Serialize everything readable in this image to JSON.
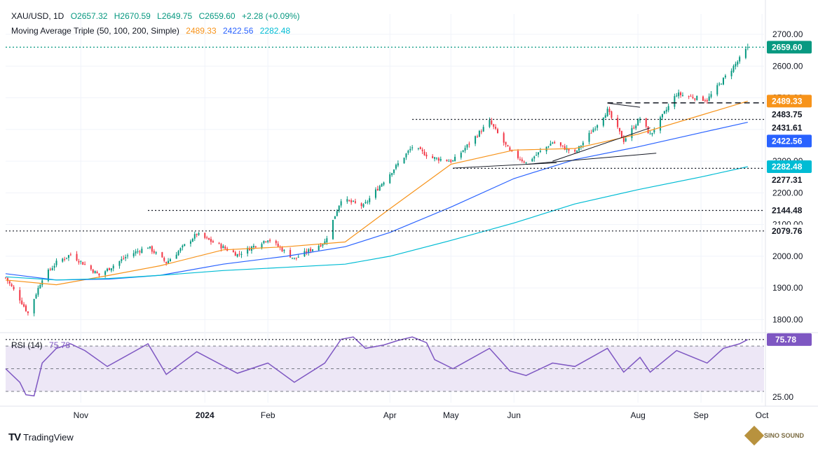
{
  "header": {
    "symbol": "XAU/USD, 1D",
    "open": "O2657.32",
    "high": "H2670.59",
    "low": "L2649.75",
    "close": "C2659.60",
    "change": "+2.28 (+0.09%)",
    "ma_label": "Moving Average Triple (50, 100, 200, Simple)",
    "ma50_value": "2489.33",
    "ma100_value": "2422.56",
    "ma200_value": "2282.48"
  },
  "rsi_header": {
    "label": "RSI (14)",
    "value": "75.78"
  },
  "footer": {
    "brand": "TradingView",
    "watermark": "SINO SOUND"
  },
  "colors": {
    "up": "#089981",
    "down": "#f23645",
    "ma50": "#f7931a",
    "ma100": "#2962ff",
    "ma200": "#00bcd4",
    "rsi": "#7e57c2",
    "rsi_band": "#ede7f6"
  },
  "chart_data": {
    "type": "candlestick",
    "symbol": "XAU/USD",
    "timeframe": "1D",
    "ylim": [
      1770,
      2720
    ],
    "y_ticks": [
      1800,
      1900,
      2000,
      2100,
      2200,
      2300,
      2400,
      2500,
      2600,
      2700
    ],
    "x_ticks": [
      {
        "label": "Nov",
        "date": "2023-11-01"
      },
      {
        "label": "2024",
        "date": "2024-01-01"
      },
      {
        "label": "Feb",
        "date": "2024-02-01"
      },
      {
        "label": "Apr",
        "date": "2024-04-01"
      },
      {
        "label": "May",
        "date": "2024-05-01"
      },
      {
        "label": "Jun",
        "date": "2024-06-01"
      },
      {
        "label": "Aug",
        "date": "2024-08-01"
      },
      {
        "label": "Sep",
        "date": "2024-09-01"
      },
      {
        "label": "Oct",
        "date": "2024-10-01"
      }
    ],
    "x_range": [
      "2023-09-25",
      "2024-10-02"
    ],
    "last_candle": {
      "open": 2657.32,
      "high": 2670.59,
      "low": 2649.75,
      "close": 2659.6
    },
    "price_anchors": [
      {
        "date": "2023-09-25",
        "close": 1932
      },
      {
        "date": "2023-10-02",
        "close": 1865
      },
      {
        "date": "2023-10-06",
        "close": 1820
      },
      {
        "date": "2023-10-13",
        "close": 1930
      },
      {
        "date": "2023-10-20",
        "close": 1980
      },
      {
        "date": "2023-10-27",
        "close": 2006
      },
      {
        "date": "2023-11-10",
        "close": 1940
      },
      {
        "date": "2023-11-24",
        "close": 2002
      },
      {
        "date": "2023-12-04",
        "close": 2030
      },
      {
        "date": "2023-12-13",
        "close": 1980
      },
      {
        "date": "2023-12-28",
        "close": 2070
      },
      {
        "date": "2024-01-17",
        "close": 2005
      },
      {
        "date": "2024-02-01",
        "close": 2055
      },
      {
        "date": "2024-02-14",
        "close": 1992
      },
      {
        "date": "2024-02-29",
        "close": 2045
      },
      {
        "date": "2024-03-08",
        "close": 2180
      },
      {
        "date": "2024-03-19",
        "close": 2158
      },
      {
        "date": "2024-03-28",
        "close": 2230
      },
      {
        "date": "2024-04-12",
        "close": 2345
      },
      {
        "date": "2024-04-22",
        "close": 2310
      },
      {
        "date": "2024-05-02",
        "close": 2300
      },
      {
        "date": "2024-05-20",
        "close": 2425
      },
      {
        "date": "2024-05-30",
        "close": 2330
      },
      {
        "date": "2024-06-07",
        "close": 2295
      },
      {
        "date": "2024-06-20",
        "close": 2360
      },
      {
        "date": "2024-07-01",
        "close": 2325
      },
      {
        "date": "2024-07-17",
        "close": 2460
      },
      {
        "date": "2024-07-25",
        "close": 2365
      },
      {
        "date": "2024-08-02",
        "close": 2435
      },
      {
        "date": "2024-08-07",
        "close": 2382
      },
      {
        "date": "2024-08-20",
        "close": 2512
      },
      {
        "date": "2024-09-04",
        "close": 2493
      },
      {
        "date": "2024-09-12",
        "close": 2558
      },
      {
        "date": "2024-09-20",
        "close": 2622
      },
      {
        "date": "2024-09-24",
        "close": 2659.6
      }
    ],
    "moving_averages": [
      {
        "name": "MA 50",
        "value": 2489.33,
        "color": "#f7931a",
        "points": [
          [
            "2023-09-25",
            1925
          ],
          [
            "2023-10-20",
            1910
          ],
          [
            "2023-11-15",
            1940
          ],
          [
            "2023-12-10",
            1970
          ],
          [
            "2024-01-10",
            2020
          ],
          [
            "2024-02-10",
            2030
          ],
          [
            "2024-03-10",
            2045
          ],
          [
            "2024-04-01",
            2150
          ],
          [
            "2024-05-01",
            2290
          ],
          [
            "2024-06-01",
            2335
          ],
          [
            "2024-07-01",
            2340
          ],
          [
            "2024-08-01",
            2385
          ],
          [
            "2024-09-01",
            2445
          ],
          [
            "2024-09-24",
            2489.33
          ]
        ]
      },
      {
        "name": "MA 100",
        "value": 2422.56,
        "color": "#2962ff",
        "points": [
          [
            "2023-09-25",
            1945
          ],
          [
            "2023-10-20",
            1925
          ],
          [
            "2023-11-15",
            1928
          ],
          [
            "2023-12-10",
            1940
          ],
          [
            "2024-01-10",
            1975
          ],
          [
            "2024-02-10",
            2000
          ],
          [
            "2024-03-10",
            2030
          ],
          [
            "2024-04-01",
            2075
          ],
          [
            "2024-05-01",
            2155
          ],
          [
            "2024-06-01",
            2245
          ],
          [
            "2024-07-01",
            2305
          ],
          [
            "2024-08-01",
            2345
          ],
          [
            "2024-09-01",
            2390
          ],
          [
            "2024-09-24",
            2422.56
          ]
        ]
      },
      {
        "name": "MA 200",
        "value": 2282.48,
        "color": "#00bcd4",
        "points": [
          [
            "2023-09-25",
            1935
          ],
          [
            "2023-10-20",
            1925
          ],
          [
            "2023-11-15",
            1930
          ],
          [
            "2023-12-10",
            1940
          ],
          [
            "2024-01-10",
            1955
          ],
          [
            "2024-02-10",
            1965
          ],
          [
            "2024-03-10",
            1975
          ],
          [
            "2024-04-01",
            2000
          ],
          [
            "2024-05-01",
            2050
          ],
          [
            "2024-06-01",
            2105
          ],
          [
            "2024-07-01",
            2165
          ],
          [
            "2024-08-01",
            2210
          ],
          [
            "2024-09-01",
            2250
          ],
          [
            "2024-09-24",
            2282.48
          ]
        ]
      }
    ],
    "horizontal_levels": [
      {
        "value": 2659.6,
        "label": "2659.60",
        "style": "dotted",
        "color": "#089981",
        "from": "2023-09-25"
      },
      {
        "value": 2483.75,
        "label": "2483.75",
        "style": "dashed",
        "color": "#131722",
        "from": "2024-07-17"
      },
      {
        "value": 2431.61,
        "label": "2431.61",
        "style": "dotted",
        "color": "#131722",
        "from": "2024-04-12"
      },
      {
        "value": 2277.31,
        "label": "2277.31",
        "style": "dotted",
        "color": "#131722",
        "from": "2024-05-02"
      },
      {
        "value": 2144.48,
        "label": "2144.48",
        "style": "dotted",
        "color": "#131722",
        "from": "2023-12-04"
      },
      {
        "value": 2079.76,
        "label": "2079.76",
        "style": "dotted",
        "color": "#131722",
        "from": "2023-09-25"
      }
    ],
    "price_labels": [
      {
        "value": 2659.6,
        "label": "2659.60",
        "bg": "#089981",
        "fg": "#ffffff"
      },
      {
        "value": 2489.33,
        "label": "2489.33",
        "bg": "#f7931a",
        "fg": "#ffffff"
      },
      {
        "value": 2483.75,
        "label": "2483.75",
        "bg": "#ffffff",
        "fg": "#131722"
      },
      {
        "value": 2431.61,
        "label": "2431.61",
        "bg": "#ffffff",
        "fg": "#131722"
      },
      {
        "value": 2422.56,
        "label": "2422.56",
        "bg": "#2962ff",
        "fg": "#ffffff"
      },
      {
        "value": 2282.48,
        "label": "2282.48",
        "bg": "#00bcd4",
        "fg": "#ffffff"
      },
      {
        "value": 2277.31,
        "label": "2277.31",
        "bg": "#ffffff",
        "fg": "#131722"
      },
      {
        "value": 2144.48,
        "label": "2144.48",
        "bg": "#ffffff",
        "fg": "#131722"
      },
      {
        "value": 2079.76,
        "label": "2079.76",
        "bg": "#ffffff",
        "fg": "#131722"
      }
    ],
    "trendlines": [
      {
        "from": [
          "2024-05-02",
          2278
        ],
        "to": [
          "2024-06-22",
          2295
        ]
      },
      {
        "from": [
          "2024-06-07",
          2290
        ],
        "to": [
          "2024-08-10",
          2325
        ]
      },
      {
        "from": [
          "2024-06-20",
          2300
        ],
        "to": [
          "2024-08-07",
          2405
        ]
      },
      {
        "from": [
          "2024-07-17",
          2483
        ],
        "to": [
          "2024-08-02",
          2470
        ]
      }
    ],
    "rsi": {
      "name": "RSI (14)",
      "value": 75.78,
      "ylim": [
        20,
        80
      ],
      "band": [
        30,
        70
      ],
      "ticks": [
        25.0
      ],
      "last_label": "75.78",
      "anchors": [
        [
          "2023-09-25",
          50
        ],
        [
          "2023-10-02",
          38
        ],
        [
          "2023-10-05",
          27
        ],
        [
          "2023-10-09",
          26
        ],
        [
          "2023-10-13",
          55
        ],
        [
          "2023-10-20",
          68
        ],
        [
          "2023-10-27",
          72
        ],
        [
          "2023-11-03",
          66
        ],
        [
          "2023-11-14",
          52
        ],
        [
          "2023-11-28",
          66
        ],
        [
          "2023-12-04",
          72
        ],
        [
          "2023-12-13",
          45
        ],
        [
          "2023-12-28",
          65
        ],
        [
          "2024-01-17",
          46
        ],
        [
          "2024-02-01",
          55
        ],
        [
          "2024-02-14",
          38
        ],
        [
          "2024-02-29",
          55
        ],
        [
          "2024-03-08",
          76
        ],
        [
          "2024-03-14",
          78
        ],
        [
          "2024-03-20",
          68
        ],
        [
          "2024-03-29",
          71
        ],
        [
          "2024-04-05",
          75
        ],
        [
          "2024-04-12",
          78
        ],
        [
          "2024-04-19",
          73
        ],
        [
          "2024-04-23",
          58
        ],
        [
          "2024-05-02",
          50
        ],
        [
          "2024-05-20",
          68
        ],
        [
          "2024-05-30",
          48
        ],
        [
          "2024-06-07",
          44
        ],
        [
          "2024-06-20",
          55
        ],
        [
          "2024-07-01",
          52
        ],
        [
          "2024-07-17",
          68
        ],
        [
          "2024-07-25",
          47
        ],
        [
          "2024-08-02",
          60
        ],
        [
          "2024-08-07",
          47
        ],
        [
          "2024-08-20",
          66
        ],
        [
          "2024-09-04",
          55
        ],
        [
          "2024-09-12",
          68
        ],
        [
          "2024-09-20",
          72
        ],
        [
          "2024-09-24",
          75.78
        ]
      ]
    }
  }
}
